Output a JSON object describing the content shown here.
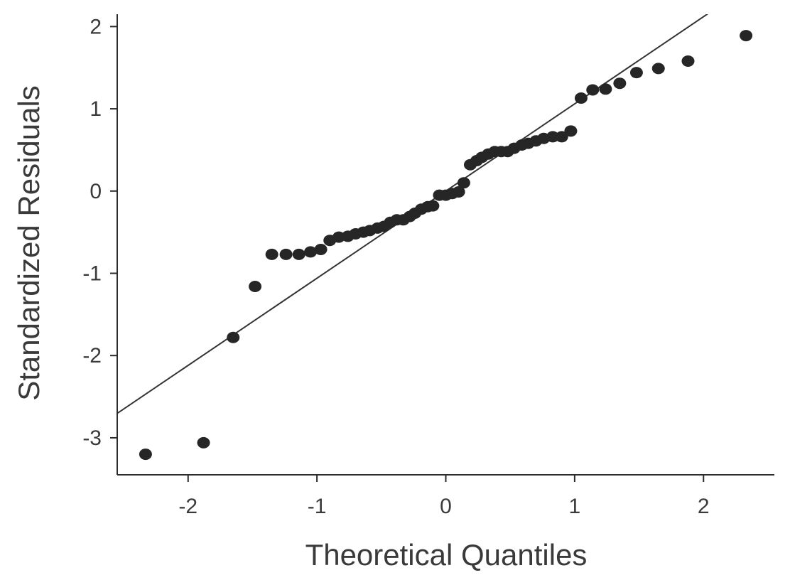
{
  "chart_data": {
    "type": "scatter",
    "title": "",
    "xlabel": "Theoretical Quantiles",
    "ylabel": "Standardized Residuals",
    "xlim": [
      -2.55,
      2.55
    ],
    "ylim": [
      -3.45,
      2.15
    ],
    "xticks": [
      -2,
      -1,
      0,
      1,
      2
    ],
    "xtick_labels": [
      "-2",
      "-1",
      "0",
      "1",
      "2"
    ],
    "yticks": [
      -3,
      -2,
      -1,
      0,
      1,
      2
    ],
    "ytick_labels": [
      "-3",
      "-2",
      "-1",
      "0",
      "1",
      "2"
    ],
    "grid": false,
    "reference_line": {
      "slope": 1.06,
      "intercept": 0.0
    },
    "points": [
      {
        "x": -2.33,
        "y": -3.2
      },
      {
        "x": -1.88,
        "y": -3.06
      },
      {
        "x": -1.65,
        "y": -1.78
      },
      {
        "x": -1.48,
        "y": -1.16
      },
      {
        "x": -1.35,
        "y": -0.77
      },
      {
        "x": -1.24,
        "y": -0.77
      },
      {
        "x": -1.14,
        "y": -0.77
      },
      {
        "x": -1.05,
        "y": -0.74
      },
      {
        "x": -0.97,
        "y": -0.71
      },
      {
        "x": -0.9,
        "y": -0.6
      },
      {
        "x": -0.83,
        "y": -0.56
      },
      {
        "x": -0.76,
        "y": -0.55
      },
      {
        "x": -0.7,
        "y": -0.52
      },
      {
        "x": -0.64,
        "y": -0.5
      },
      {
        "x": -0.59,
        "y": -0.48
      },
      {
        "x": -0.53,
        "y": -0.45
      },
      {
        "x": -0.48,
        "y": -0.43
      },
      {
        "x": -0.43,
        "y": -0.38
      },
      {
        "x": -0.38,
        "y": -0.35
      },
      {
        "x": -0.33,
        "y": -0.35
      },
      {
        "x": -0.28,
        "y": -0.31
      },
      {
        "x": -0.24,
        "y": -0.27
      },
      {
        "x": -0.19,
        "y": -0.22
      },
      {
        "x": -0.14,
        "y": -0.19
      },
      {
        "x": -0.1,
        "y": -0.18
      },
      {
        "x": -0.05,
        "y": -0.05
      },
      {
        "x": 0.0,
        "y": -0.05
      },
      {
        "x": 0.05,
        "y": -0.03
      },
      {
        "x": 0.1,
        "y": -0.01
      },
      {
        "x": 0.14,
        "y": 0.1
      },
      {
        "x": 0.19,
        "y": 0.32
      },
      {
        "x": 0.24,
        "y": 0.37
      },
      {
        "x": 0.28,
        "y": 0.41
      },
      {
        "x": 0.33,
        "y": 0.45
      },
      {
        "x": 0.38,
        "y": 0.48
      },
      {
        "x": 0.43,
        "y": 0.48
      },
      {
        "x": 0.48,
        "y": 0.48
      },
      {
        "x": 0.53,
        "y": 0.52
      },
      {
        "x": 0.59,
        "y": 0.56
      },
      {
        "x": 0.64,
        "y": 0.58
      },
      {
        "x": 0.7,
        "y": 0.61
      },
      {
        "x": 0.76,
        "y": 0.64
      },
      {
        "x": 0.83,
        "y": 0.66
      },
      {
        "x": 0.9,
        "y": 0.66
      },
      {
        "x": 0.97,
        "y": 0.73
      },
      {
        "x": 1.05,
        "y": 1.13
      },
      {
        "x": 1.14,
        "y": 1.23
      },
      {
        "x": 1.24,
        "y": 1.24
      },
      {
        "x": 1.35,
        "y": 1.31
      },
      {
        "x": 1.48,
        "y": 1.44
      },
      {
        "x": 1.65,
        "y": 1.49
      },
      {
        "x": 1.88,
        "y": 1.58
      },
      {
        "x": 2.33,
        "y": 1.89
      }
    ]
  }
}
